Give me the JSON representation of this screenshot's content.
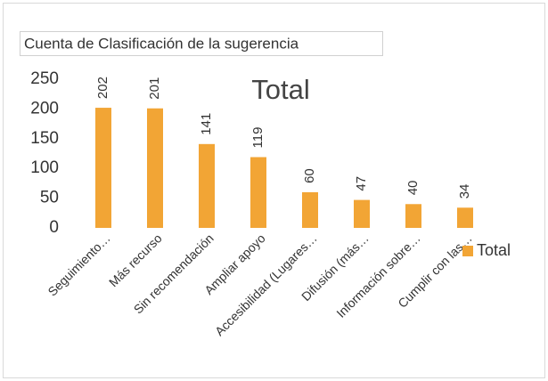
{
  "chart_data": {
    "type": "bar",
    "field_button": "Cuenta de Clasificación de la sugerencia",
    "title": "Total",
    "categories": [
      "Seguimiento…",
      "Más recurso",
      "Sin recomendación",
      "Ampliar apoyo",
      "Accesibilidad (Lugares…",
      "Difusión (más…",
      "Información sobre…",
      "Cumplir con  las…"
    ],
    "series": [
      {
        "name": "Total",
        "color": "#f2a535",
        "values": [
          202,
          201,
          141,
          119,
          60,
          47,
          40,
          34
        ]
      }
    ],
    "ylim": [
      0,
      250
    ],
    "yticks": [
      0,
      50,
      100,
      150,
      200,
      250
    ],
    "grid": false,
    "legend": "right"
  }
}
